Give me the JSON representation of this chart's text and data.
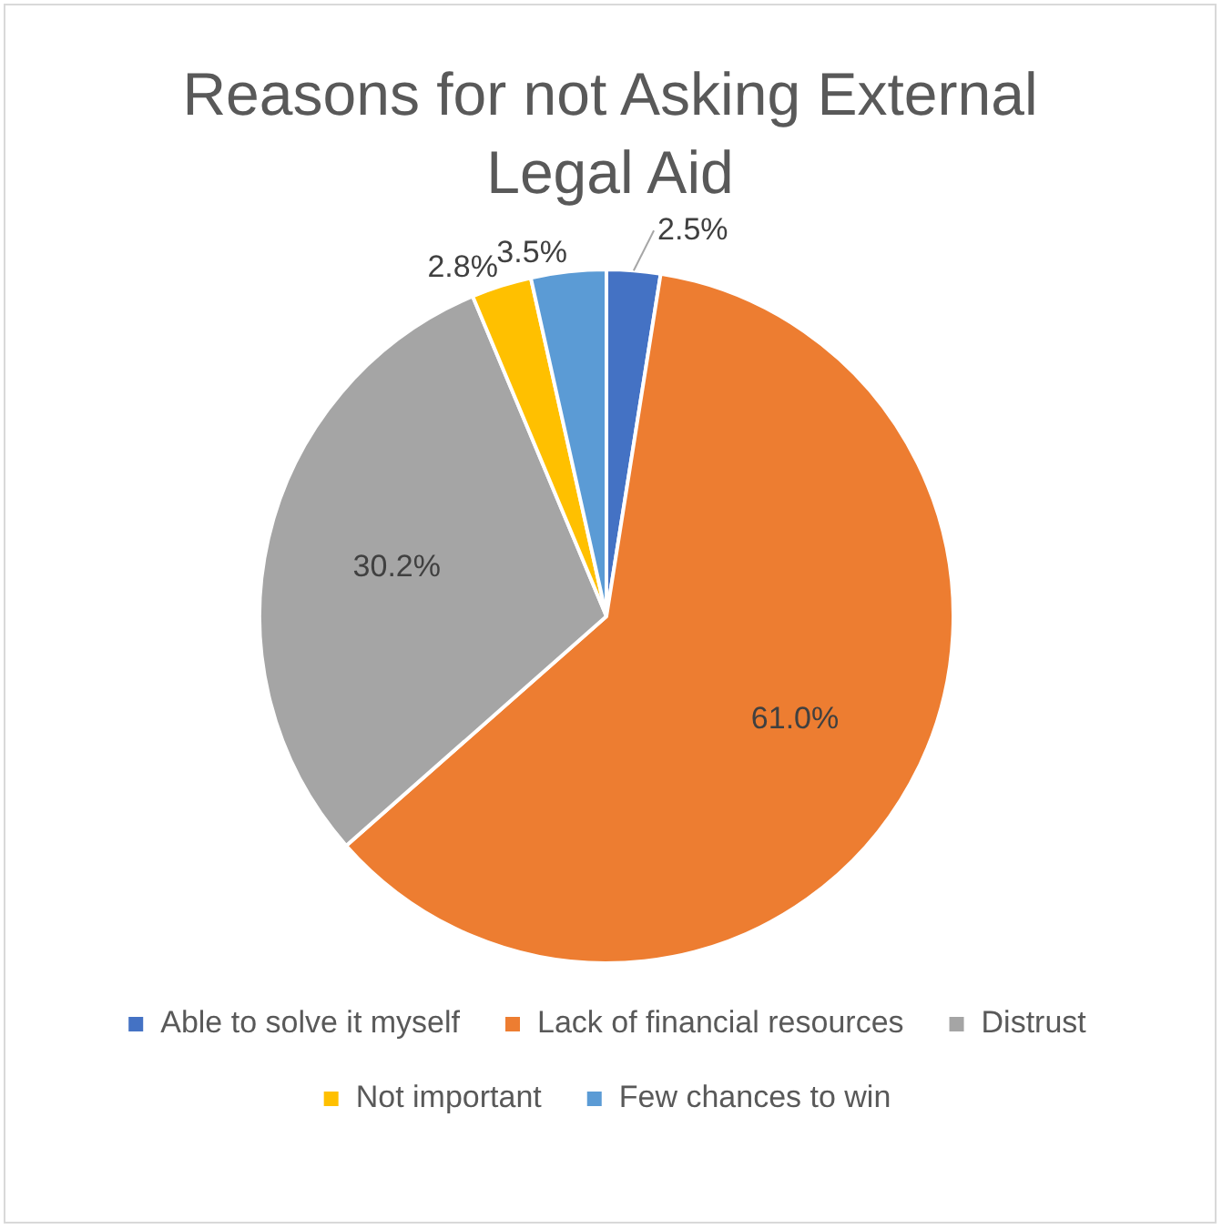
{
  "chart_data": {
    "type": "pie",
    "title": "Reasons for not Asking External Legal Aid",
    "categories": [
      "Able to solve it myself",
      "Lack of financial resources",
      "Distrust",
      "Not important",
      "Few chances to win"
    ],
    "values": [
      2.5,
      61.0,
      30.2,
      2.8,
      3.5
    ],
    "colors": [
      "#4472c4",
      "#ed7d31",
      "#a5a5a5",
      "#ffc000",
      "#5b9bd5"
    ],
    "value_labels": [
      "2.5%",
      "61.0%",
      "30.2%",
      "2.8%",
      "3.5%"
    ],
    "legend": "bottom"
  }
}
